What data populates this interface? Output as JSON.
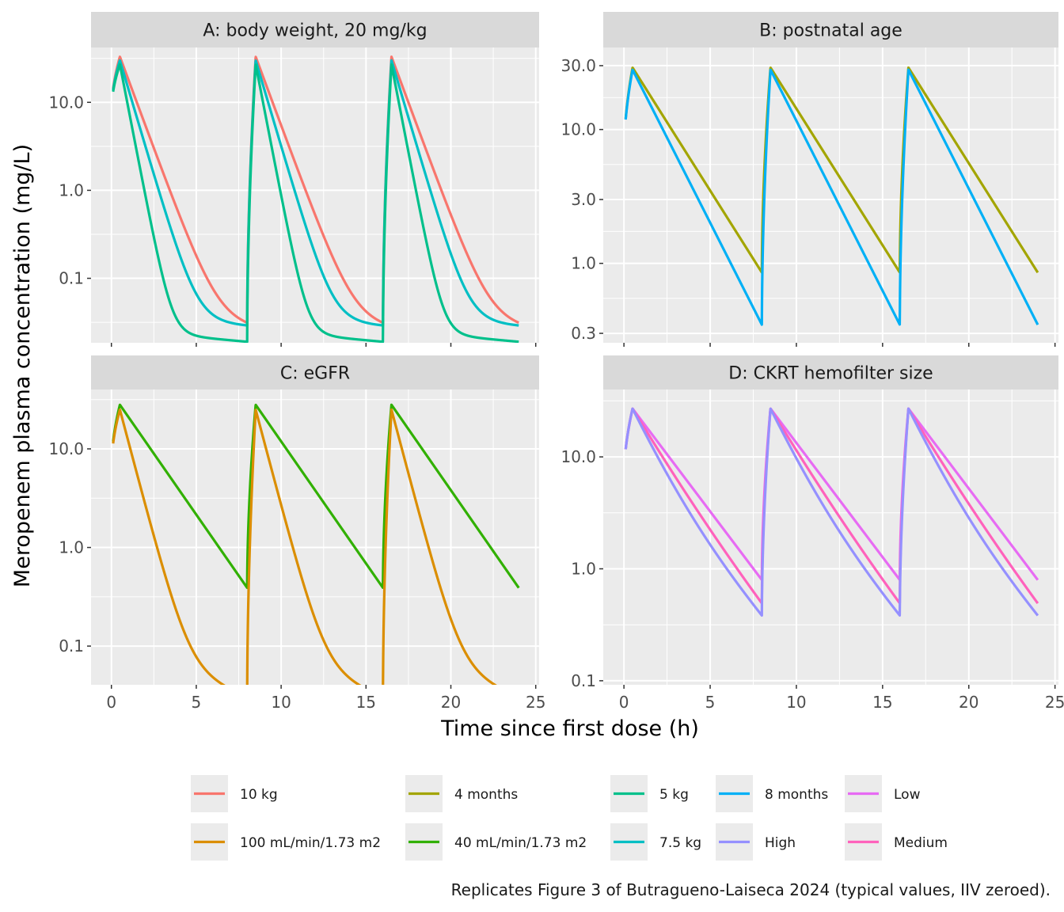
{
  "chart_data": {
    "type": "line",
    "ylabel": "Meropenem plasma concentration (mg/L)",
    "xlabel": "Time since first dose (h)",
    "xlim": [
      -1.2,
      25.2
    ],
    "x_ticks": [
      "0",
      "5",
      "10",
      "15",
      "20",
      "25"
    ],
    "y_scale": "log10",
    "grid": true,
    "legend_position": "bottom",
    "caption": "Replicates Figure 3 of Butragueno-Laiseca 2024 (typical values, IIV zeroed).",
    "dosing": {
      "interval_h": 8,
      "doses_h": [
        0,
        8,
        16
      ],
      "infusion_h": 0.5,
      "end_h": 24
    },
    "panels": [
      {
        "title": "A: body weight, 20 mg/kg",
        "ylim": [
          0.0185,
          42
        ],
        "y_ticks": [
          {
            "value": 0.1,
            "label": "0.1"
          },
          {
            "value": 1,
            "label": "1.0"
          },
          {
            "value": 10,
            "label": "10.0"
          }
        ],
        "series": [
          {
            "name": "10 kg",
            "color": "#F8766D",
            "start": 8,
            "peak": 33,
            "k1": 1.2,
            "k2": 0.05,
            "ratio": 0.0012,
            "per_dose": [
              1,
              1.0,
              1.0
            ]
          },
          {
            "name": "7.5 kg",
            "color": "#00BFC4",
            "start": 8,
            "peak": 30,
            "k1": 1.5,
            "k2": 0.03,
            "ratio": 0.0012,
            "per_dose": [
              1,
              1.0,
              1.0
            ]
          },
          {
            "name": "5 kg",
            "color": "#00C08B",
            "start": 8,
            "peak": 27,
            "k1": 2.3,
            "k2": 0.04,
            "ratio": 0.00095,
            "per_dose": [
              1,
              1.0,
              1.0
            ]
          }
        ]
      },
      {
        "title": "B: postnatal age",
        "ylim": [
          0.255,
          41
        ],
        "y_ticks": [
          {
            "value": 0.3,
            "label": "0.3"
          },
          {
            "value": 1,
            "label": "1.0"
          },
          {
            "value": 3,
            "label": "3.0"
          },
          {
            "value": 10,
            "label": "10.0"
          },
          {
            "value": 30,
            "label": "30.0"
          }
        ],
        "series": [
          {
            "name": "4 months",
            "color": "#A3A500",
            "start": 6.5,
            "peak": 29,
            "k1": 0.47,
            "k2": 0.47,
            "ratio": 0.5,
            "per_dose": [
              1,
              1.0,
              1.0
            ]
          },
          {
            "name": "8 months",
            "color": "#00B0F6",
            "start": 6.5,
            "peak": 28,
            "k1": 0.585,
            "k2": 0.585,
            "ratio": 0.5,
            "per_dose": [
              1,
              1.0,
              1.0
            ]
          }
        ]
      },
      {
        "title": "C: eGFR",
        "ylim": [
          0.0405,
          40
        ],
        "y_ticks": [
          {
            "value": 0.1,
            "label": "0.1"
          },
          {
            "value": 1,
            "label": "1.0"
          },
          {
            "value": 10,
            "label": "10.0"
          }
        ],
        "series": [
          {
            "name": "40 mL/min/1.73 m2",
            "color": "#31B000",
            "start": 6.5,
            "peak": 28,
            "k1": 0.57,
            "k2": 0.57,
            "ratio": 0.5,
            "per_dose": [
              1,
              1.0,
              1.0
            ]
          },
          {
            "name": "100 mL/min/1.73 m2",
            "color": "#DB8E00",
            "start": 6.5,
            "peak": 25,
            "k1": 1.5,
            "k2": 0.16,
            "ratio": 0.004,
            "per_dose": [
              1,
              1.0,
              1.0
            ]
          }
        ]
      },
      {
        "title": "D: CKRT hemofilter size",
        "ylim": [
          0.092,
          40
        ],
        "y_ticks": [
          {
            "value": 0.1,
            "label": "0.1"
          },
          {
            "value": 1,
            "label": "1.0"
          },
          {
            "value": 10,
            "label": "10.0"
          }
        ],
        "series": [
          {
            "name": "Low",
            "color": "#E76BF3",
            "start": 6.5,
            "peak": 27,
            "k1": 0.47,
            "k2": 0.47,
            "ratio": 0.5,
            "per_dose": [
              1,
              1.0,
              1.0
            ]
          },
          {
            "name": "Medium",
            "color": "#FF62BC",
            "start": 6.5,
            "peak": 27,
            "k1": 0.65,
            "k2": 0.42,
            "ratio": 0.3,
            "per_dose": [
              1,
              1.0,
              1.0
            ]
          },
          {
            "name": "High",
            "color": "#9590FF",
            "start": 6.5,
            "peak": 27,
            "k1": 0.81,
            "k2": 0.4,
            "ratio": 0.25,
            "per_dose": [
              1,
              1.0,
              1.0
            ]
          }
        ]
      }
    ],
    "legend": [
      {
        "label": "10 kg",
        "color": "#F8766D"
      },
      {
        "label": "100 mL/min/1.73 m2",
        "color": "#DB8E00"
      },
      {
        "label": "4 months",
        "color": "#A3A500"
      },
      {
        "label": "40 mL/min/1.73 m2",
        "color": "#31B000"
      },
      {
        "label": "5 kg",
        "color": "#00C08B"
      },
      {
        "label": "7.5 kg",
        "color": "#00BFC4"
      },
      {
        "label": "8 months",
        "color": "#00B0F6"
      },
      {
        "label": "High",
        "color": "#9590FF"
      },
      {
        "label": "Low",
        "color": "#E76BF3"
      },
      {
        "label": "Medium",
        "color": "#FF62BC"
      }
    ]
  }
}
